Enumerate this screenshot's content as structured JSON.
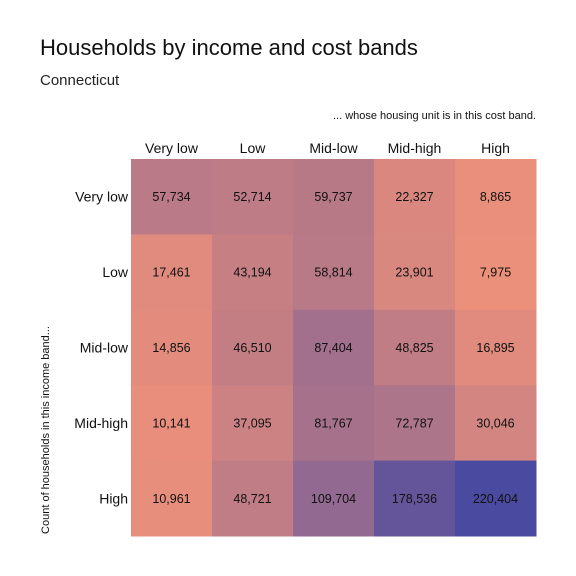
{
  "chart_data": {
    "type": "heatmap",
    "title": "Households by income and cost bands",
    "subtitle": "Connecticut",
    "column_caption": "... whose housing unit is in this cost band.",
    "ylabel": "Count of households in this income band...",
    "columns": [
      "Very low",
      "Low",
      "Mid-low",
      "Mid-high",
      "High"
    ],
    "rows": [
      "Very low",
      "Low",
      "Mid-low",
      "Mid-high",
      "High"
    ],
    "values": [
      [
        57734,
        52714,
        59737,
        22327,
        8865
      ],
      [
        17461,
        43194,
        58814,
        23901,
        7975
      ],
      [
        14856,
        46510,
        87404,
        48825,
        16895
      ],
      [
        10141,
        37095,
        81767,
        72787,
        30046
      ],
      [
        10961,
        48721,
        109704,
        178536,
        220404
      ]
    ],
    "labels": [
      [
        "57,734",
        "52,714",
        "59,737",
        "22,327",
        "8,865"
      ],
      [
        "17,461",
        "43,194",
        "58,814",
        "23,901",
        "7,975"
      ],
      [
        "14,856",
        "46,510",
        "87,404",
        "48,825",
        "16,895"
      ],
      [
        "10,141",
        "37,095",
        "81,767",
        "72,787",
        "30,046"
      ],
      [
        "10,961",
        "48,721",
        "109,704",
        "178,536",
        "220,404"
      ]
    ],
    "color_low": "#fa9678",
    "color_high": "#4a4aa0",
    "legend": "none"
  }
}
